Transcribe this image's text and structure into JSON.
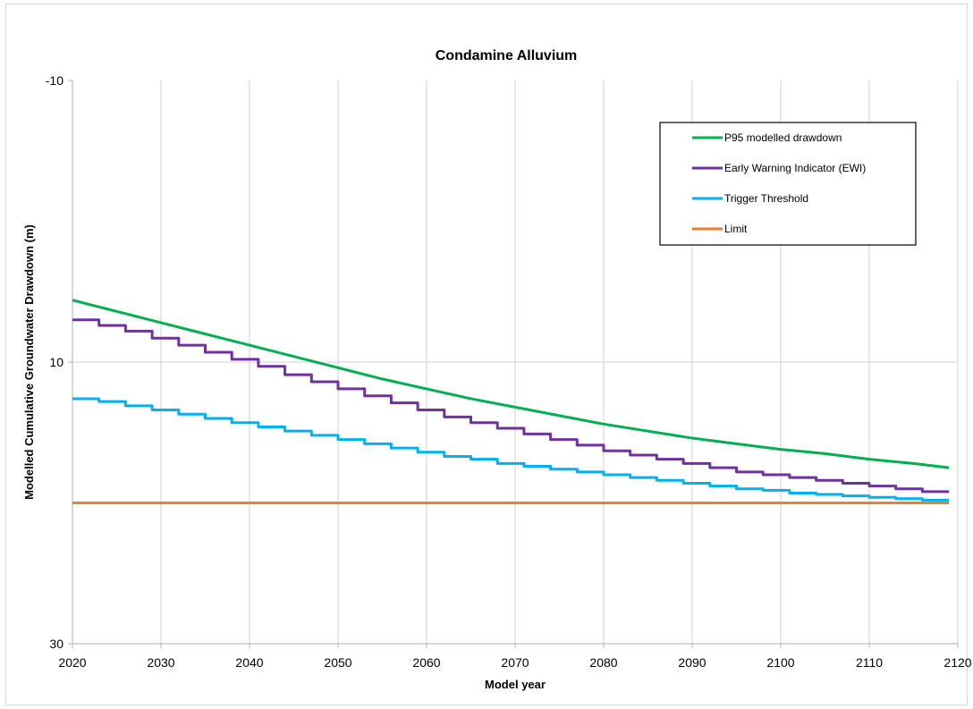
{
  "chart_data": {
    "type": "line",
    "title": "Condamine Alluvium",
    "xlabel": "Model year",
    "ylabel": "Modelled Cumulative Groundwater Drawdown (m)",
    "xlim": [
      2020,
      2120
    ],
    "ylim": [
      -10,
      30
    ],
    "y_inverted": true,
    "grid": "vertical gridlines at every 10 years, horizontal gridline at 10",
    "x_ticks": [
      2020,
      2030,
      2040,
      2050,
      2060,
      2070,
      2080,
      2090,
      2100,
      2110,
      2120
    ],
    "y_ticks": [
      -10,
      10,
      30
    ],
    "legend_position": "top-right",
    "series": [
      {
        "name": "P95 modelled drawdown",
        "color": "#00b050",
        "step": false,
        "points": [
          [
            2020,
            5.6
          ],
          [
            2025,
            6.4
          ],
          [
            2030,
            7.2
          ],
          [
            2035,
            8.0
          ],
          [
            2040,
            8.8
          ],
          [
            2045,
            9.6
          ],
          [
            2050,
            10.4
          ],
          [
            2055,
            11.2
          ],
          [
            2060,
            11.9
          ],
          [
            2065,
            12.6
          ],
          [
            2070,
            13.2
          ],
          [
            2075,
            13.8
          ],
          [
            2080,
            14.4
          ],
          [
            2085,
            14.9
          ],
          [
            2090,
            15.4
          ],
          [
            2095,
            15.8
          ],
          [
            2100,
            16.2
          ],
          [
            2105,
            16.5
          ],
          [
            2110,
            16.9
          ],
          [
            2115,
            17.2
          ],
          [
            2119,
            17.5
          ]
        ]
      },
      {
        "name": "Early Warning Indicator (EWI)",
        "color": "#7030a0",
        "step": true,
        "points": [
          [
            2020,
            7.0
          ],
          [
            2023,
            7.4
          ],
          [
            2026,
            7.8
          ],
          [
            2029,
            8.3
          ],
          [
            2032,
            8.8
          ],
          [
            2035,
            9.3
          ],
          [
            2038,
            9.8
          ],
          [
            2041,
            10.3
          ],
          [
            2044,
            10.9
          ],
          [
            2047,
            11.4
          ],
          [
            2050,
            11.9
          ],
          [
            2053,
            12.4
          ],
          [
            2056,
            12.9
          ],
          [
            2059,
            13.4
          ],
          [
            2062,
            13.9
          ],
          [
            2065,
            14.3
          ],
          [
            2068,
            14.7
          ],
          [
            2071,
            15.1
          ],
          [
            2074,
            15.5
          ],
          [
            2077,
            15.9
          ],
          [
            2080,
            16.3
          ],
          [
            2083,
            16.6
          ],
          [
            2086,
            16.9
          ],
          [
            2089,
            17.2
          ],
          [
            2092,
            17.5
          ],
          [
            2095,
            17.8
          ],
          [
            2098,
            18.0
          ],
          [
            2101,
            18.2
          ],
          [
            2104,
            18.4
          ],
          [
            2107,
            18.6
          ],
          [
            2110,
            18.8
          ],
          [
            2113,
            19.0
          ],
          [
            2116,
            19.2
          ],
          [
            2119,
            19.2
          ]
        ]
      },
      {
        "name": "Trigger Threshold",
        "color": "#00b0f0",
        "step": true,
        "points": [
          [
            2020,
            12.6
          ],
          [
            2023,
            12.8
          ],
          [
            2026,
            13.1
          ],
          [
            2029,
            13.4
          ],
          [
            2032,
            13.7
          ],
          [
            2035,
            14.0
          ],
          [
            2038,
            14.3
          ],
          [
            2041,
            14.6
          ],
          [
            2044,
            14.9
          ],
          [
            2047,
            15.2
          ],
          [
            2050,
            15.5
          ],
          [
            2053,
            15.8
          ],
          [
            2056,
            16.1
          ],
          [
            2059,
            16.4
          ],
          [
            2062,
            16.7
          ],
          [
            2065,
            16.9
          ],
          [
            2068,
            17.2
          ],
          [
            2071,
            17.4
          ],
          [
            2074,
            17.6
          ],
          [
            2077,
            17.8
          ],
          [
            2080,
            18.0
          ],
          [
            2083,
            18.2
          ],
          [
            2086,
            18.4
          ],
          [
            2089,
            18.6
          ],
          [
            2092,
            18.8
          ],
          [
            2095,
            19.0
          ],
          [
            2098,
            19.1
          ],
          [
            2101,
            19.3
          ],
          [
            2104,
            19.4
          ],
          [
            2107,
            19.5
          ],
          [
            2110,
            19.6
          ],
          [
            2113,
            19.7
          ],
          [
            2116,
            19.8
          ],
          [
            2119,
            19.8
          ]
        ]
      },
      {
        "name": "Limit",
        "color": "#ed7d31",
        "step": false,
        "points": [
          [
            2020,
            20.0
          ],
          [
            2119,
            20.0
          ]
        ]
      }
    ]
  }
}
